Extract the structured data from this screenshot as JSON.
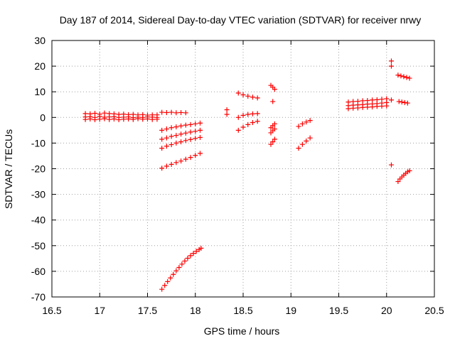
{
  "chart_data": {
    "type": "scatter",
    "title": "Day 187 of 2014, Sidereal Day-to-day VTEC variation (SDTVAR) for receiver nrwy",
    "xlabel": "GPS time / hours",
    "ylabel": "SDTVAR / TECUs",
    "xlim": [
      16.5,
      20.5
    ],
    "ylim": [
      -70,
      30
    ],
    "xticks": [
      16.5,
      17,
      17.5,
      18,
      18.5,
      19,
      19.5,
      20,
      20.5
    ],
    "xtick_labels": [
      "16.5",
      "17",
      "17.5",
      "18",
      "18.5",
      "19",
      "19.5",
      "20",
      "20.5"
    ],
    "yticks": [
      -70,
      -60,
      -50,
      -40,
      -30,
      -20,
      -10,
      0,
      10,
      20,
      30
    ],
    "ytick_labels": [
      "-70",
      "-60",
      "-50",
      "-40",
      "-30",
      "-20",
      "-10",
      "0",
      "10",
      "20",
      "30"
    ],
    "grid": true,
    "marker": "+",
    "color": "#ff0000",
    "series": [
      {
        "name": "band-17-a",
        "x": [
          16.85,
          16.9,
          16.95,
          17.0,
          17.05,
          17.1,
          17.15,
          17.2,
          17.25,
          17.3,
          17.35,
          17.4,
          17.45,
          17.5,
          17.55,
          17.6
        ],
        "y": [
          1.5,
          1.4,
          1.6,
          1.3,
          1.7,
          1.5,
          1.4,
          1.2,
          1.3,
          1.1,
          1.2,
          1.0,
          1.1,
          0.9,
          1.0,
          1.0
        ]
      },
      {
        "name": "band-17-b",
        "x": [
          16.85,
          16.9,
          16.95,
          17.0,
          17.05,
          17.1,
          17.15,
          17.2,
          17.25,
          17.3,
          17.35,
          17.4,
          17.45,
          17.5,
          17.55,
          17.6
        ],
        "y": [
          0.2,
          0.3,
          0.0,
          0.4,
          0.1,
          0.2,
          0.3,
          0.0,
          0.1,
          0.2,
          -0.1,
          0.1,
          0.0,
          0.2,
          0.1,
          0.0
        ]
      },
      {
        "name": "band-17-c",
        "x": [
          16.85,
          16.9,
          16.95,
          17.0,
          17.05,
          17.1,
          17.15,
          17.2,
          17.25,
          17.3,
          17.35,
          17.4,
          17.45,
          17.5,
          17.55,
          17.6
        ],
        "y": [
          -0.8,
          -0.6,
          -0.9,
          -0.7,
          -0.5,
          -0.8,
          -0.6,
          -0.9,
          -0.7,
          -0.6,
          -0.8,
          -0.5,
          -0.7,
          -0.6,
          -0.8,
          -0.7
        ]
      },
      {
        "name": "flat-17.7",
        "x": [
          17.65,
          17.7,
          17.75,
          17.8,
          17.85,
          17.9
        ],
        "y": [
          2.0,
          1.9,
          2.0,
          1.8,
          1.9,
          1.8
        ]
      },
      {
        "name": "diag-1",
        "x": [
          17.65,
          17.7,
          17.75,
          17.8,
          17.85,
          17.9,
          17.95,
          18.0,
          18.05
        ],
        "y": [
          -5.0,
          -4.5,
          -4.0,
          -3.7,
          -3.3,
          -3.0,
          -2.8,
          -2.5,
          -2.2
        ]
      },
      {
        "name": "diag-2",
        "x": [
          17.65,
          17.7,
          17.75,
          17.8,
          17.85,
          17.9,
          17.95,
          18.0,
          18.05
        ],
        "y": [
          -8.5,
          -8.0,
          -7.4,
          -7.0,
          -6.5,
          -6.1,
          -5.7,
          -5.4,
          -5.0
        ]
      },
      {
        "name": "diag-3",
        "x": [
          17.65,
          17.7,
          17.75,
          17.8,
          17.85,
          17.9,
          17.95,
          18.0,
          18.05
        ],
        "y": [
          -12.0,
          -11.2,
          -10.6,
          -10.0,
          -9.5,
          -9.0,
          -8.6,
          -8.2,
          -7.8
        ]
      },
      {
        "name": "diag-4",
        "x": [
          17.65,
          17.7,
          17.75,
          17.8,
          17.85,
          17.9,
          17.95,
          18.0,
          18.05
        ],
        "y": [
          -19.8,
          -19.0,
          -18.3,
          -17.6,
          -17.0,
          -16.3,
          -15.6,
          -14.8,
          -14.0
        ]
      },
      {
        "name": "steep",
        "x": [
          17.65,
          17.68,
          17.71,
          17.74,
          17.77,
          17.8,
          17.83,
          17.86,
          17.89,
          17.92,
          17.95,
          17.98,
          18.01,
          18.04,
          18.06
        ],
        "y": [
          -67.0,
          -65.5,
          -64.0,
          -62.6,
          -61.2,
          -59.8,
          -58.5,
          -57.2,
          -56.0,
          -54.9,
          -53.9,
          -53.0,
          -52.2,
          -51.5,
          -51.0
        ]
      },
      {
        "name": "pair-18.3",
        "x": [
          18.33,
          18.33
        ],
        "y": [
          3.0,
          1.2
        ]
      },
      {
        "name": "upper-18.5",
        "x": [
          18.45,
          18.5,
          18.55,
          18.6,
          18.65
        ],
        "y": [
          9.5,
          8.8,
          8.3,
          7.9,
          7.6
        ]
      },
      {
        "name": "mid-18.5",
        "x": [
          18.45,
          18.5,
          18.55,
          18.6,
          18.65
        ],
        "y": [
          0.0,
          0.8,
          1.2,
          1.4,
          1.5
        ]
      },
      {
        "name": "low-18.5",
        "x": [
          18.45,
          18.5,
          18.55,
          18.6,
          18.65
        ],
        "y": [
          -5.0,
          -3.8,
          -2.8,
          -2.0,
          -1.5
        ]
      },
      {
        "name": "col-18.8-top",
        "x": [
          18.79,
          18.81,
          18.83
        ],
        "y": [
          12.5,
          11.8,
          11.0
        ]
      },
      {
        "name": "col-18.8-sq",
        "x": [
          18.81
        ],
        "y": [
          6.2
        ]
      },
      {
        "name": "col-18.8-a",
        "x": [
          18.79,
          18.81,
          18.83
        ],
        "y": [
          -4.0,
          -3.2,
          -2.5
        ]
      },
      {
        "name": "col-18.8-b",
        "x": [
          18.79,
          18.81,
          18.83
        ],
        "y": [
          -6.0,
          -5.2,
          -4.5
        ]
      },
      {
        "name": "col-18.8-c",
        "x": [
          18.79,
          18.81,
          18.83
        ],
        "y": [
          -10.5,
          -9.5,
          -8.5
        ]
      },
      {
        "name": "d-19.1-a",
        "x": [
          19.08,
          19.12,
          19.16,
          19.2
        ],
        "y": [
          -3.5,
          -2.5,
          -1.8,
          -1.2
        ]
      },
      {
        "name": "d-19.1-b",
        "x": [
          19.08,
          19.12,
          19.16,
          19.2
        ],
        "y": [
          -12.0,
          -10.5,
          -9.2,
          -8.0
        ]
      },
      {
        "name": "band-19.8-a",
        "x": [
          19.6,
          19.65,
          19.7,
          19.75,
          19.8,
          19.85,
          19.9,
          19.95,
          20.0
        ],
        "y": [
          6.0,
          6.2,
          6.3,
          6.5,
          6.6,
          6.8,
          6.9,
          7.1,
          7.3
        ]
      },
      {
        "name": "band-19.8-b",
        "x": [
          19.6,
          19.65,
          19.7,
          19.75,
          19.8,
          19.85,
          19.9,
          19.95,
          20.0
        ],
        "y": [
          4.6,
          4.8,
          4.9,
          5.0,
          5.2,
          5.3,
          5.4,
          5.6,
          5.8
        ]
      },
      {
        "name": "band-19.8-c",
        "x": [
          19.6,
          19.65,
          19.7,
          19.75,
          19.8,
          19.85,
          19.9,
          19.95,
          20.0
        ],
        "y": [
          3.4,
          3.6,
          3.7,
          3.9,
          4.0,
          4.1,
          4.3,
          4.4,
          4.5
        ]
      },
      {
        "name": "iso-20.05",
        "x": [
          20.05,
          20.05,
          20.05,
          20.05
        ],
        "y": [
          22.0,
          20.0,
          6.8,
          -18.5
        ]
      },
      {
        "name": "d-20.2-top",
        "x": [
          20.12,
          20.15,
          20.18,
          20.21,
          20.24
        ],
        "y": [
          16.5,
          16.2,
          15.9,
          15.6,
          15.3
        ]
      },
      {
        "name": "d-20.2-mid",
        "x": [
          20.13,
          20.16,
          20.19,
          20.22
        ],
        "y": [
          6.2,
          6.0,
          5.8,
          5.6
        ]
      },
      {
        "name": "d-20.2-low",
        "x": [
          20.12,
          20.14,
          20.16,
          20.18,
          20.2,
          20.22,
          20.24
        ],
        "y": [
          -25.0,
          -24.0,
          -23.2,
          -22.5,
          -21.8,
          -21.2,
          -20.8
        ]
      }
    ]
  }
}
